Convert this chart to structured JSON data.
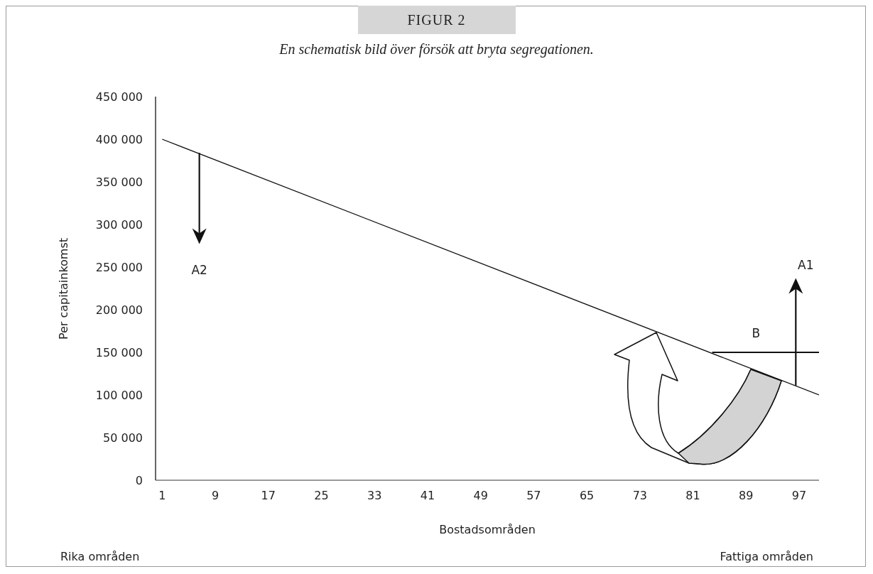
{
  "chart_data": {
    "type": "line",
    "title": "FIGUR 2",
    "subtitle": "En schematisk bild över försök att bryta segregationen.",
    "xlabel": "Bostadsområden",
    "ylabel": "Per capitainkomst",
    "x": [
      1,
      100
    ],
    "series": [
      {
        "color": "#111111",
        "values": [
          400000,
          100000
        ]
      }
    ],
    "xlim": [
      0,
      100
    ],
    "xticks": [
      1,
      9,
      17,
      25,
      33,
      41,
      49,
      57,
      65,
      73,
      81,
      89,
      97
    ],
    "ylim": [
      0,
      450000
    ],
    "yticks": [
      {
        "value": 0,
        "label": "0"
      },
      {
        "value": 50000,
        "label": "50 000"
      },
      {
        "value": 100000,
        "label": "100 000"
      },
      {
        "value": 150000,
        "label": "150 000"
      },
      {
        "value": 200000,
        "label": "200 000"
      },
      {
        "value": 250000,
        "label": "250 000"
      },
      {
        "value": 300000,
        "label": "300 000"
      },
      {
        "value": 350000,
        "label": "350 000"
      },
      {
        "value": 400000,
        "label": "400 000"
      },
      {
        "value": 450000,
        "label": "450 000"
      }
    ],
    "grid": false,
    "legend": false,
    "marker": "none",
    "line_style": "solid",
    "annotations": [
      "A2",
      "A1",
      "B",
      "Rika områden",
      "Fattiga områden"
    ]
  }
}
